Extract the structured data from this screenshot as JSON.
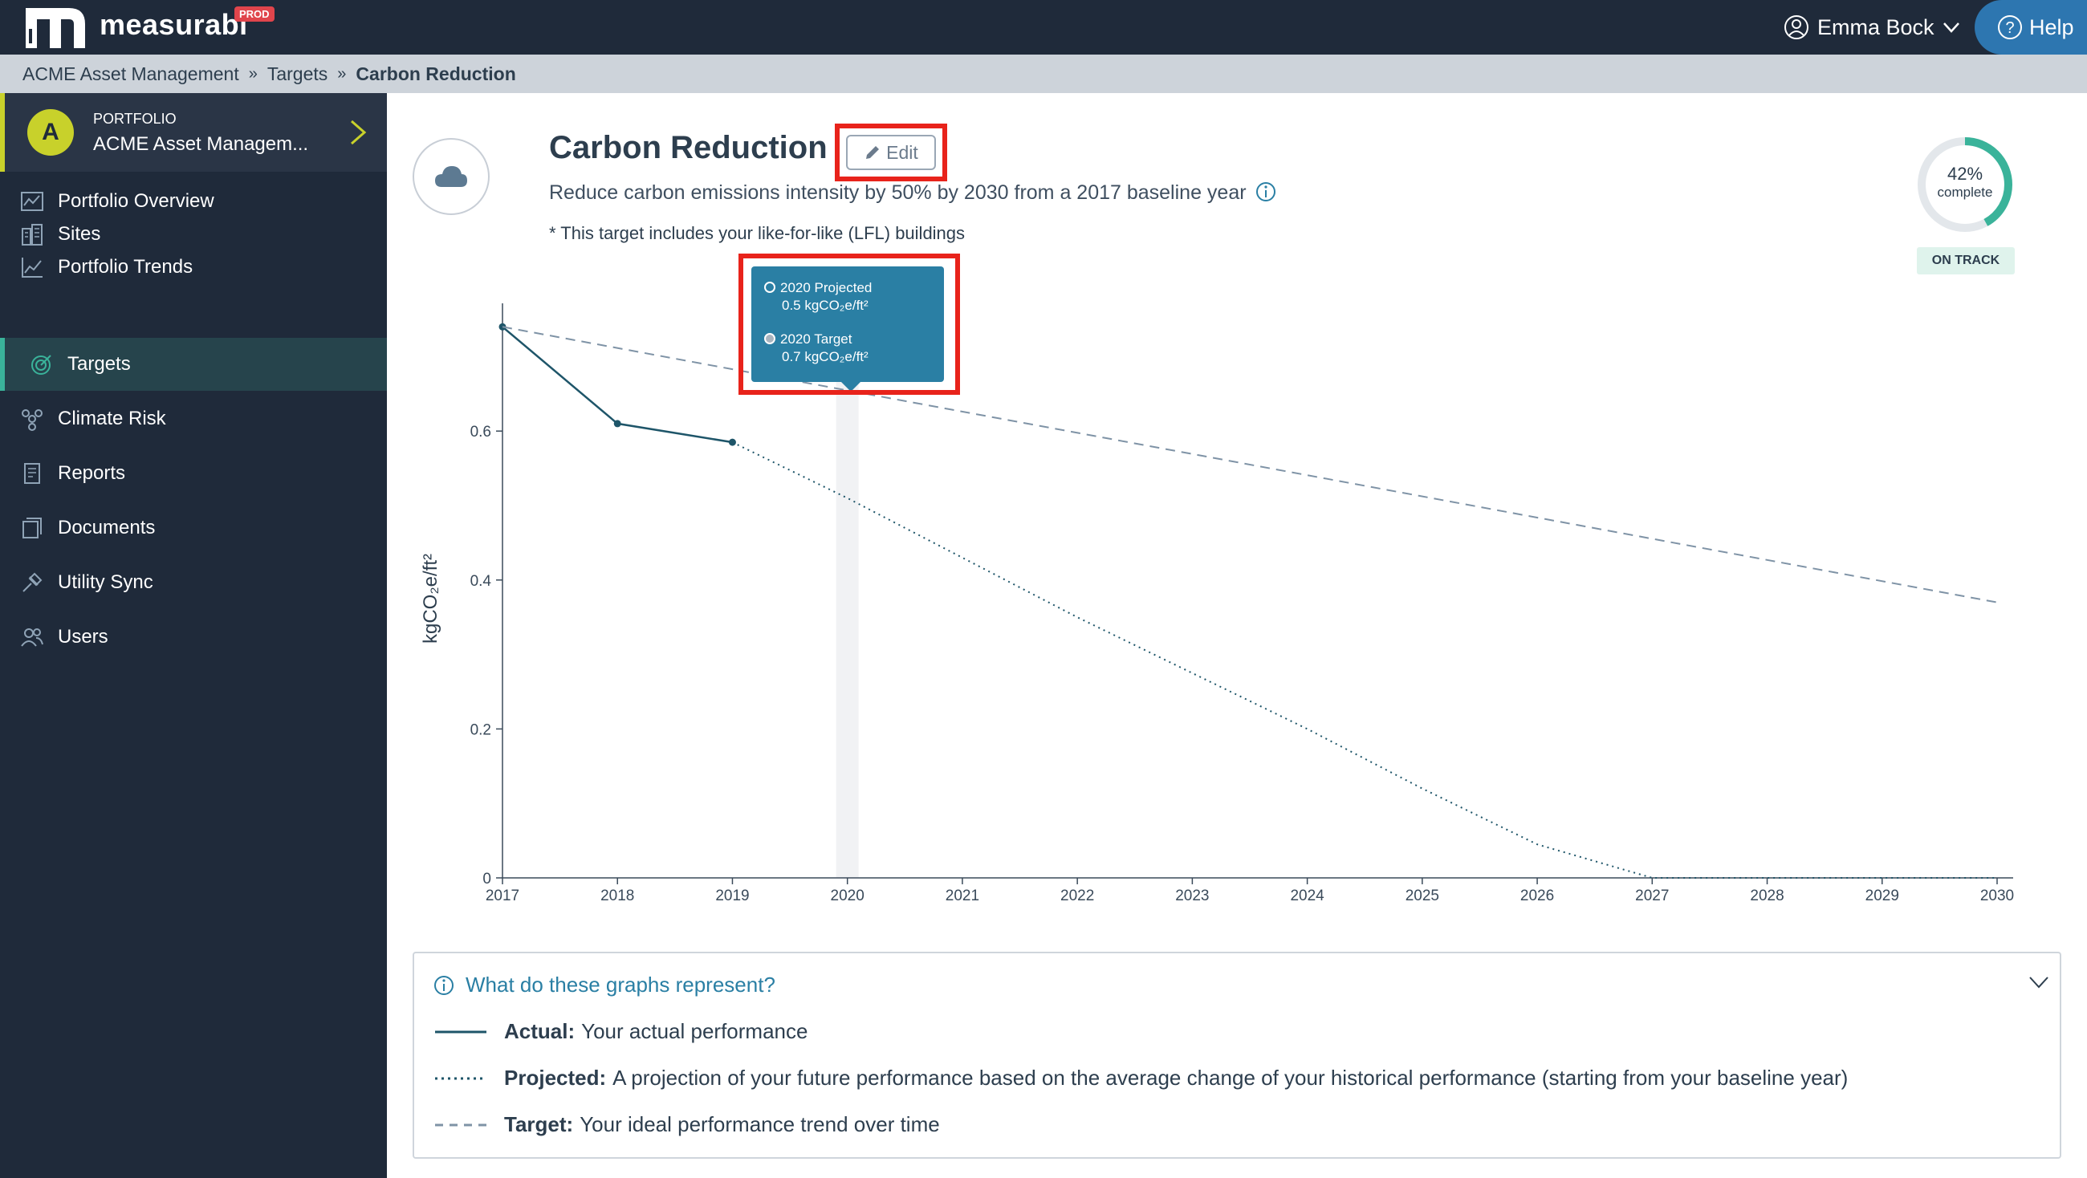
{
  "app": {
    "name": "measurabl",
    "env_badge": "PROD"
  },
  "user": {
    "name": "Emma Bock"
  },
  "help": {
    "label": "Help"
  },
  "breadcrumb": {
    "items": [
      "ACME Asset Management",
      "Targets",
      "Carbon Reduction"
    ]
  },
  "sidebar": {
    "portfolio": {
      "avatar": "A",
      "label": "PORTFOLIO",
      "name": "ACME Asset Managem..."
    },
    "items": [
      {
        "label": "Portfolio Overview",
        "icon": "overview-icon"
      },
      {
        "label": "Sites",
        "icon": "building-icon"
      },
      {
        "label": "Portfolio Trends",
        "icon": "trend-icon"
      },
      {
        "label": "Targets",
        "icon": "target-icon",
        "active": true
      },
      {
        "label": "Climate Risk",
        "icon": "climate-icon"
      },
      {
        "label": "Reports",
        "icon": "report-icon"
      },
      {
        "label": "Documents",
        "icon": "document-icon"
      },
      {
        "label": "Utility Sync",
        "icon": "sync-icon"
      },
      {
        "label": "Users",
        "icon": "users-icon"
      }
    ]
  },
  "target": {
    "title": "Carbon Reduction",
    "edit_label": "Edit",
    "description": "Reduce carbon emissions intensity by 50% by 2030 from a 2017 baseline year",
    "note": "* This target includes your like-for-like (LFL) buildings",
    "progress": {
      "percent": 42,
      "percent_label": "42%",
      "label": "complete"
    },
    "status": "ON TRACK",
    "status_color": "#3ab39a"
  },
  "tooltip": {
    "projected_title": "2020 Projected",
    "projected_value": "0.5 kgCO₂e/ft²",
    "target_title": "2020 Target",
    "target_value": "0.7 kgCO₂e/ft²"
  },
  "chart_data": {
    "type": "line",
    "ylabel": "kgCO₂e/ft²",
    "xlim": [
      2017,
      2030
    ],
    "ylim": [
      0,
      0.75
    ],
    "yticks": [
      0,
      0.2,
      0.4,
      0.6
    ],
    "ytick_labels": [
      "0",
      "0.2",
      "0.4",
      "0.6"
    ],
    "xticks": [
      2017,
      2018,
      2019,
      2020,
      2021,
      2022,
      2023,
      2024,
      2025,
      2026,
      2027,
      2028,
      2029,
      2030
    ],
    "highlight_x": 2020,
    "series": [
      {
        "name": "Actual",
        "style": "solid",
        "color": "#1e5569",
        "x": [
          2017,
          2018,
          2019
        ],
        "y": [
          0.74,
          0.61,
          0.585
        ]
      },
      {
        "name": "Projected",
        "style": "dotted",
        "color": "#1e5569",
        "x": [
          2019,
          2020,
          2021,
          2022,
          2023,
          2024,
          2025,
          2026,
          2027,
          2028,
          2029,
          2030
        ],
        "y": [
          0.585,
          0.51,
          0.43,
          0.35,
          0.275,
          0.2,
          0.12,
          0.045,
          0,
          0,
          0,
          0
        ]
      },
      {
        "name": "Target",
        "style": "dashed",
        "color": "#7f93a6",
        "x": [
          2017,
          2030
        ],
        "y": [
          0.74,
          0.37
        ]
      }
    ]
  },
  "info": {
    "title": "What do these graphs represent?",
    "items": [
      {
        "term": "Actual:",
        "text": "Your actual performance"
      },
      {
        "term": "Projected:",
        "text": "A projection of your future performance based on the average change of your historical performance (starting from your baseline year)"
      },
      {
        "term": "Target:",
        "text": "Your ideal performance trend over time"
      }
    ]
  }
}
